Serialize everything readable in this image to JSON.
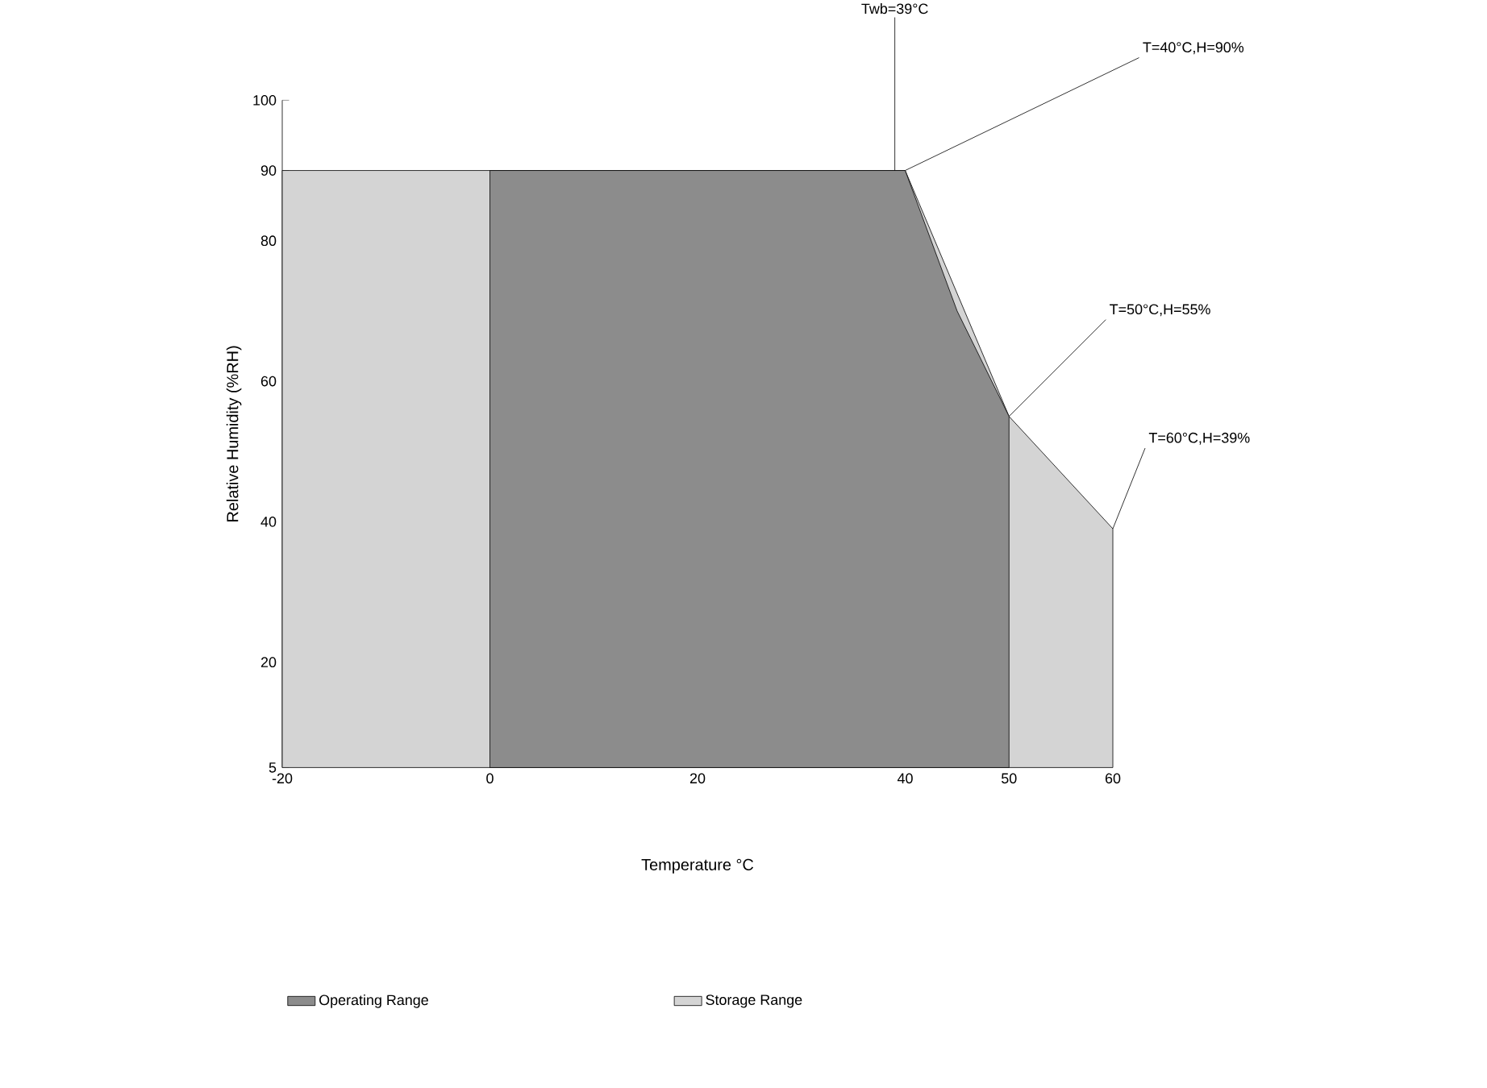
{
  "chart_data": {
    "type": "area",
    "xlabel": "Temperature °C",
    "ylabel": "Relative Humidity (%RH)",
    "series": [
      {
        "name": "Operating Range",
        "color": "#8c8c8c",
        "x": [
          0,
          40,
          45,
          50
        ],
        "values": [
          90,
          90,
          70,
          55
        ]
      },
      {
        "name": "Storage Range",
        "color": "#d4d4d4",
        "x": [
          -20,
          40,
          45,
          50,
          60
        ],
        "values": [
          90,
          90,
          null,
          55,
          39
        ]
      }
    ],
    "xlim": [
      -20,
      60
    ],
    "xticks": [
      -20,
      0,
      20,
      40,
      50,
      60
    ],
    "ylim": [
      5,
      100
    ],
    "yticks": [
      5,
      20,
      40,
      60,
      80,
      90,
      100
    ],
    "annotations": [
      {
        "text": "Twb=39°C",
        "x": 39,
        "y": 90
      },
      {
        "text": "T=40°C,H=90%",
        "x": 40,
        "y": 90
      },
      {
        "text": "T=50°C,H=55%",
        "x": 50,
        "y": 55
      },
      {
        "text": "T=60°C,H=39%",
        "x": 60,
        "y": 39
      }
    ],
    "grid": false,
    "legend": "bottom"
  }
}
